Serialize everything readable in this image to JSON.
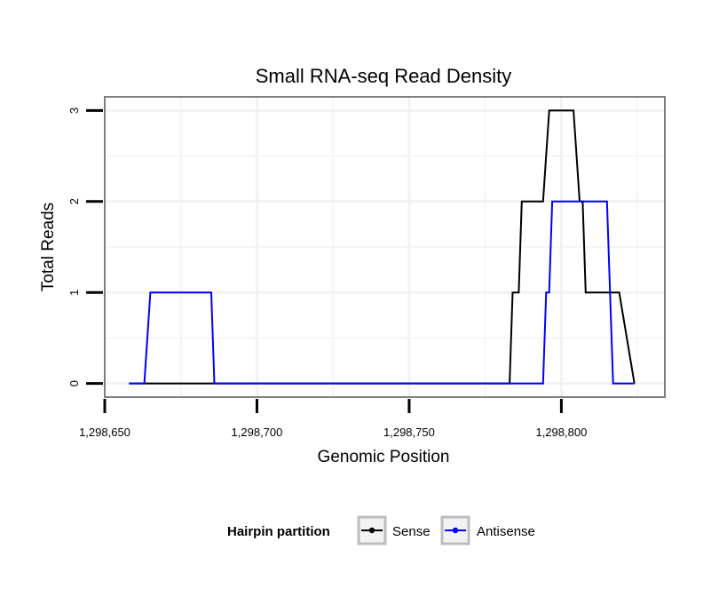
{
  "chart_data": {
    "type": "line",
    "title": "Small RNA-seq Read Density",
    "xlabel": "Genomic Position",
    "ylabel": "Total Reads",
    "xlim": [
      1298650,
      1298834
    ],
    "ylim": [
      -0.15,
      3.15
    ],
    "x_ticks": [
      1298650,
      1298700,
      1298750,
      1298800
    ],
    "x_tick_labels": [
      "1,298,650",
      "1,298,700",
      "1,298,750",
      "1,298,800"
    ],
    "y_ticks": [
      0,
      1,
      2,
      3
    ],
    "y_tick_labels": [
      "0",
      "1",
      "2",
      "3"
    ],
    "grid": true,
    "legend": {
      "title": "Hairpin partition",
      "position": "bottom",
      "entries": [
        "Sense",
        "Antisense"
      ]
    },
    "series": [
      {
        "name": "Sense",
        "color": "#000000",
        "x": [
          1298658,
          1298783,
          1298784,
          1298786,
          1298787,
          1298788,
          1298789,
          1298794,
          1298796,
          1298797,
          1298804,
          1298806,
          1298807,
          1298808,
          1298809,
          1298816,
          1298818,
          1298819,
          1298824
        ],
        "y": [
          0,
          0,
          1,
          1,
          2,
          2,
          2,
          2,
          3,
          3,
          3,
          2,
          2,
          1,
          1,
          1,
          1,
          1,
          0
        ]
      },
      {
        "name": "Antisense",
        "color": "#0000ff",
        "x": [
          1298658,
          1298663,
          1298665,
          1298685,
          1298686,
          1298687,
          1298794,
          1298795,
          1298796,
          1298797,
          1298806,
          1298815,
          1298817,
          1298824
        ],
        "y": [
          0,
          0,
          1,
          1,
          0,
          0,
          0,
          1,
          1,
          2,
          2,
          2,
          0,
          0
        ]
      }
    ]
  }
}
